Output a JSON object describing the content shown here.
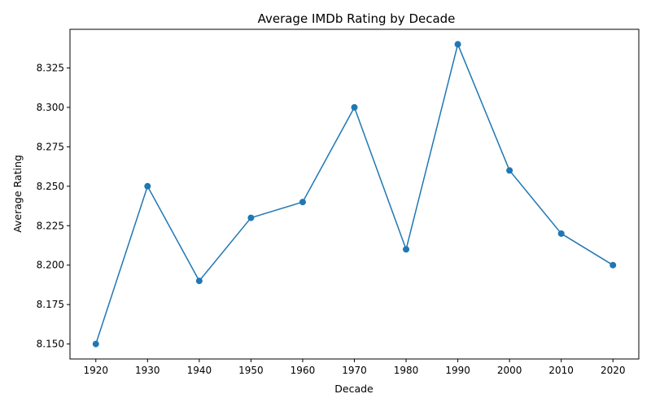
{
  "chart_data": {
    "type": "line",
    "title": "Average IMDb Rating by Decade",
    "xlabel": "Decade",
    "ylabel": "Average Rating",
    "x": [
      1920,
      1930,
      1940,
      1950,
      1960,
      1970,
      1980,
      1990,
      2000,
      2010,
      2020
    ],
    "series": [
      {
        "values": [
          8.15,
          8.25,
          8.19,
          8.23,
          8.24,
          8.3,
          8.21,
          8.34,
          8.26,
          8.22,
          8.2
        ],
        "color": "#1f77b4",
        "marker": "circle"
      }
    ],
    "xticks": [
      1920,
      1930,
      1940,
      1950,
      1960,
      1970,
      1980,
      1990,
      2000,
      2010,
      2020
    ],
    "yticks": [
      "8.150",
      "8.175",
      "8.200",
      "8.225",
      "8.250",
      "8.275",
      "8.300",
      "8.325"
    ],
    "xlim": [
      1915,
      2025
    ],
    "ylim": [
      8.1405,
      8.3495
    ],
    "grid": false,
    "legend": "none"
  }
}
